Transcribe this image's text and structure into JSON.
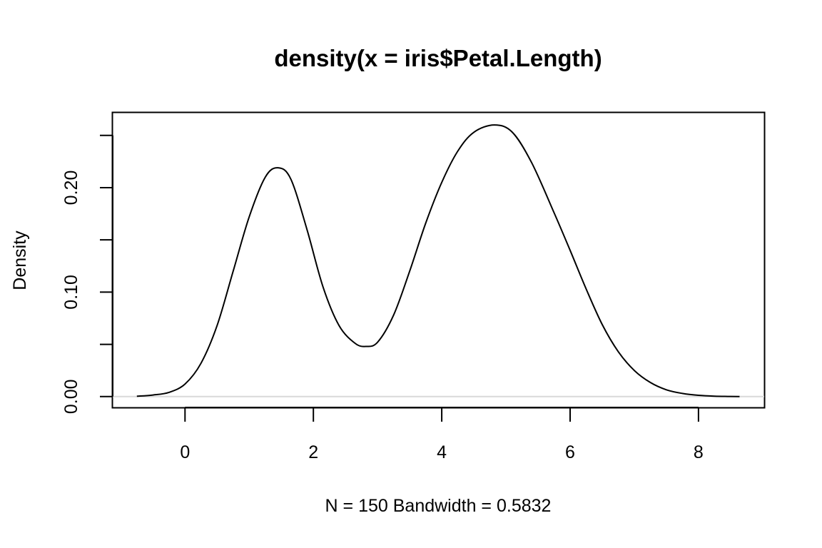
{
  "chart_data": {
    "type": "line",
    "title": "density(x = iris$Petal.Length)",
    "xlabel": "N = 150   Bandwidth = 0.5832",
    "ylabel": "Density",
    "xlim": [
      -1.126,
      9.024
    ],
    "ylim": [
      -0.0104,
      0.2717
    ],
    "x_ticks": [
      0,
      2,
      4,
      6,
      8
    ],
    "x_tick_labels": [
      "0",
      "2",
      "4",
      "6",
      "8"
    ],
    "y_ticks": [
      0.0,
      0.05,
      0.1,
      0.15,
      0.2,
      0.25
    ],
    "y_tick_labels": [
      "0.00",
      "",
      "0.10",
      "",
      "0.20",
      ""
    ],
    "grid": false,
    "baseline_y": 0,
    "baseline_color": "#d9d9d9",
    "line_color": "#000000",
    "series": [
      {
        "x": [
          -0.75,
          -0.5,
          -0.25,
          0.0,
          0.25,
          0.5,
          0.75,
          1.0,
          1.25,
          1.45,
          1.65,
          1.9,
          2.15,
          2.4,
          2.65,
          2.82,
          3.0,
          3.25,
          3.5,
          3.75,
          4.0,
          4.25,
          4.5,
          4.82,
          5.1,
          5.4,
          5.75,
          6.0,
          6.25,
          6.5,
          6.75,
          7.0,
          7.25,
          7.5,
          7.75,
          8.0,
          8.25,
          8.5,
          8.64
        ],
        "y": [
          0.0003,
          0.0015,
          0.004,
          0.012,
          0.032,
          0.068,
          0.12,
          0.172,
          0.21,
          0.219,
          0.208,
          0.16,
          0.105,
          0.068,
          0.051,
          0.048,
          0.052,
          0.078,
          0.12,
          0.166,
          0.205,
          0.235,
          0.253,
          0.26,
          0.253,
          0.224,
          0.176,
          0.14,
          0.103,
          0.069,
          0.043,
          0.025,
          0.0135,
          0.0065,
          0.003,
          0.0012,
          0.0004,
          0.0001,
          5e-05
        ]
      }
    ]
  }
}
